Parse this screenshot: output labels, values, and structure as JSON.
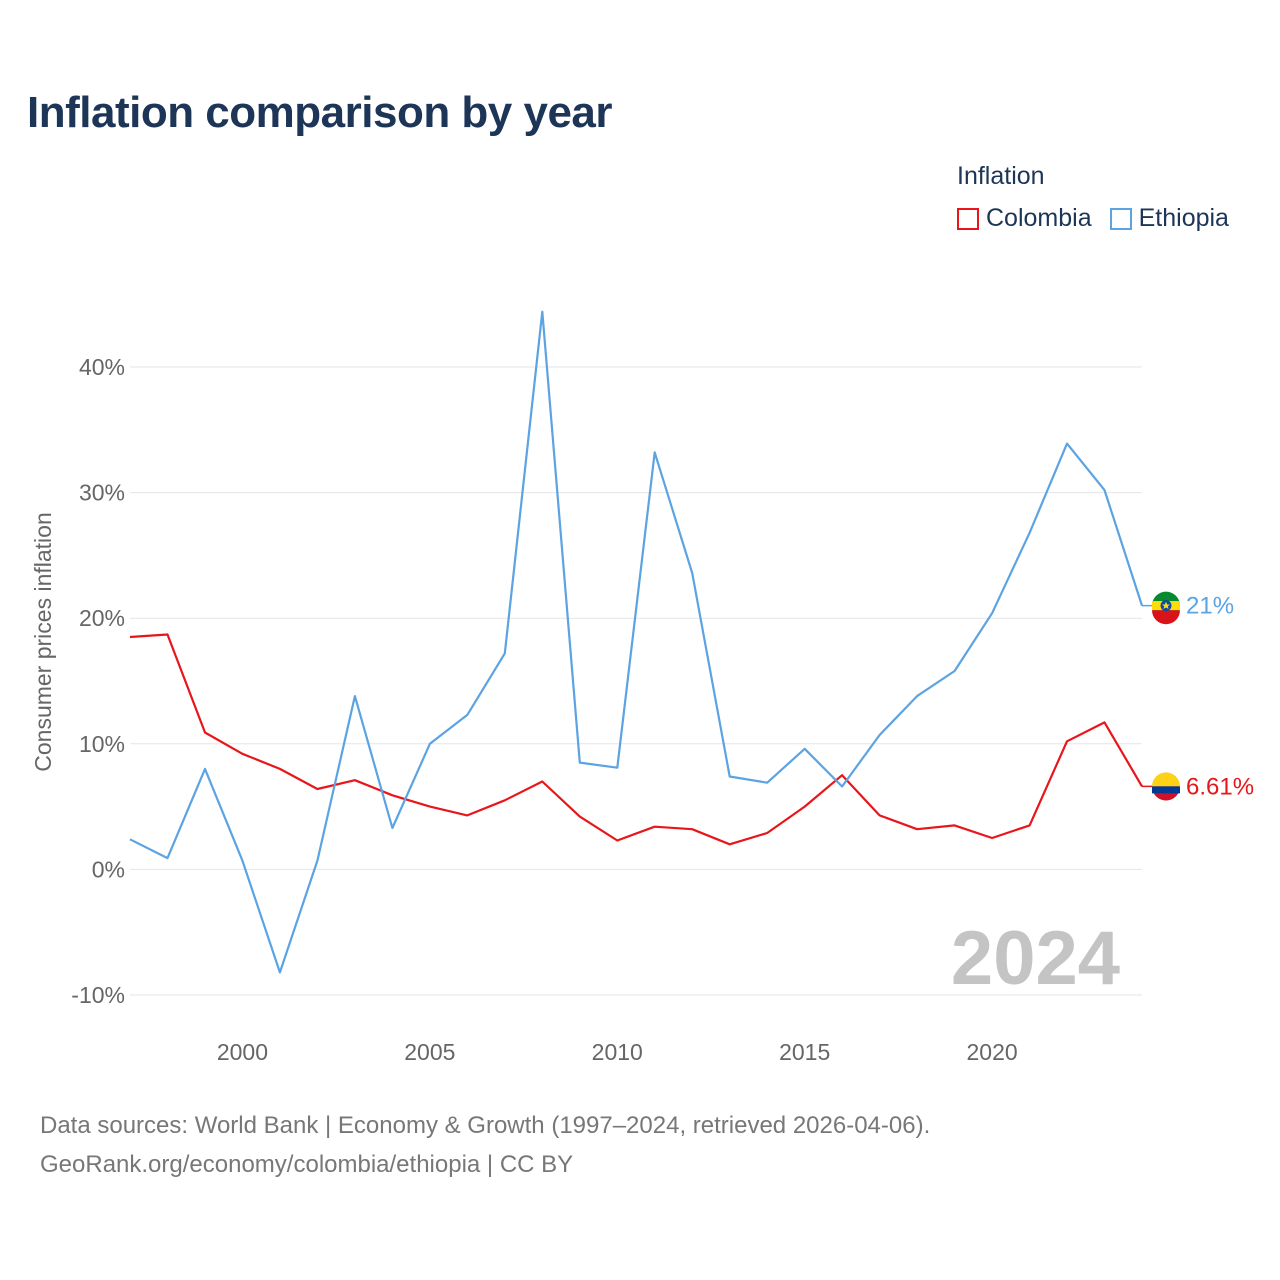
{
  "title": "Inflation comparison by year",
  "legend": {
    "title": "Inflation",
    "items": [
      {
        "label": "Colombia",
        "color": "#e8161b"
      },
      {
        "label": "Ethiopia",
        "color": "#5ba3e2"
      }
    ]
  },
  "footer": {
    "line1": "Data sources: World Bank | Economy & Growth (1997–2024, retrieved 2026-04-06).",
    "line2": "GeoRank.org/economy/colombia/ethiopia | CC BY"
  },
  "chart_data": {
    "type": "line",
    "title": "Inflation comparison by year",
    "ylabel": "Consumer prices inflation",
    "xlabel": "",
    "xlim": [
      1997,
      2024
    ],
    "ylim": [
      -10,
      45
    ],
    "x_ticks": [
      2000,
      2005,
      2010,
      2015,
      2020
    ],
    "y_ticks": [
      {
        "value": -10,
        "label": "-10%"
      },
      {
        "value": 0,
        "label": "0%"
      },
      {
        "value": 10,
        "label": "10%"
      },
      {
        "value": 20,
        "label": "20%"
      },
      {
        "value": 30,
        "label": "30%"
      },
      {
        "value": 40,
        "label": "40%"
      }
    ],
    "x": [
      1997,
      1998,
      1999,
      2000,
      2001,
      2002,
      2003,
      2004,
      2005,
      2006,
      2007,
      2008,
      2009,
      2010,
      2011,
      2012,
      2013,
      2014,
      2015,
      2016,
      2017,
      2018,
      2019,
      2020,
      2021,
      2022,
      2023,
      2024
    ],
    "series": [
      {
        "name": "Colombia",
        "color": "#e8161b",
        "end_label": "6.61%",
        "values": [
          18.5,
          18.7,
          10.9,
          9.2,
          8.0,
          6.4,
          7.1,
          5.9,
          5.0,
          4.3,
          5.5,
          7.0,
          4.2,
          2.3,
          3.4,
          3.2,
          2.0,
          2.9,
          5.0,
          7.5,
          4.3,
          3.2,
          3.5,
          2.5,
          3.5,
          10.2,
          11.7,
          6.61
        ]
      },
      {
        "name": "Ethiopia",
        "color": "#5ba3e2",
        "end_label": "21%",
        "values": [
          2.4,
          0.9,
          8.0,
          0.7,
          -8.2,
          0.7,
          13.8,
          3.3,
          10.0,
          12.3,
          17.2,
          44.4,
          8.5,
          8.1,
          33.2,
          23.6,
          7.4,
          6.9,
          9.6,
          6.6,
          10.7,
          13.8,
          15.8,
          20.4,
          26.8,
          33.9,
          30.2,
          21.0
        ]
      }
    ],
    "year_watermark": "2024"
  }
}
